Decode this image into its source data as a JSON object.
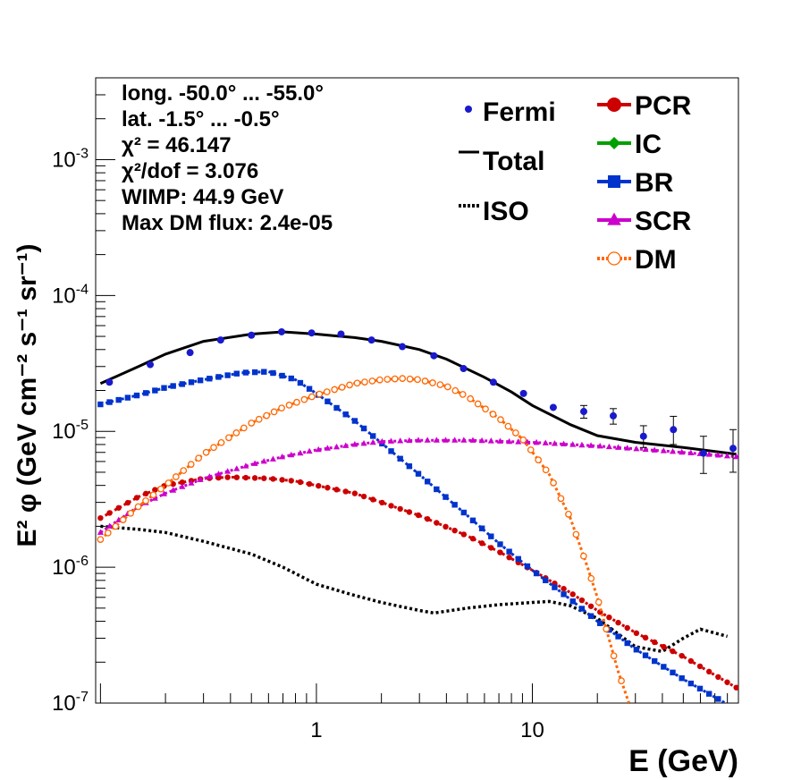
{
  "chart_data": {
    "type": "scatter",
    "xlabel": "E (GeV)",
    "ylabel": "E² φ (GeV cm⁻² s⁻¹ sr⁻¹)",
    "xscale": "log",
    "yscale": "log",
    "xlim": [
      0.095,
      90
    ],
    "ylim": [
      1e-07,
      0.004
    ],
    "x_ticks": [
      "1",
      "10"
    ],
    "y_ticks": [
      {
        "base": "10",
        "exp": "-7"
      },
      {
        "base": "10",
        "exp": "-6"
      },
      {
        "base": "10",
        "exp": "-5"
      },
      {
        "base": "10",
        "exp": "-4"
      },
      {
        "base": "10",
        "exp": "-3"
      }
    ],
    "grid": false,
    "info": {
      "lines": [
        "long. -50.0° ... -55.0°",
        "lat. -1.5° ... -0.5°",
        "χ² = 46.147",
        "χ²/dof = 3.076",
        "WIMP: 44.9 GeV",
        "Max DM flux: 2.4e-05"
      ]
    },
    "legend_left": [
      {
        "label": "Fermi",
        "color": "#1a1acc",
        "style": "point"
      },
      {
        "label": "Total",
        "color": "#000000",
        "style": "line"
      },
      {
        "label": "ISO",
        "color": "#000000",
        "style": "dotted"
      }
    ],
    "legend_right": [
      {
        "label": "PCR",
        "color": "#cc0000",
        "marker": "circle"
      },
      {
        "label": "IC",
        "color": "#00a000",
        "marker": "diamond"
      },
      {
        "label": "BR",
        "color": "#0033cc",
        "marker": "square"
      },
      {
        "label": "SCR",
        "color": "#cc00cc",
        "marker": "triangle"
      },
      {
        "label": "DM",
        "color": "#ff6600",
        "marker": "open-circle"
      }
    ],
    "fermi": {
      "x": [
        0.11,
        0.17,
        0.26,
        0.36,
        0.5,
        0.69,
        0.95,
        1.3,
        1.8,
        2.5,
        3.5,
        4.8,
        6.6,
        9.1,
        12.5,
        17.3,
        23.7,
        32.7,
        45,
        62,
        85
      ],
      "y": [
        2.3e-05,
        3.1e-05,
        3.8e-05,
        4.7e-05,
        5.1e-05,
        5.4e-05,
        5.3e-05,
        5.2e-05,
        4.7e-05,
        4.2e-05,
        3.6e-05,
        2.9e-05,
        2.3e-05,
        1.9e-05,
        1.5e-05,
        1.4e-05,
        1.3e-05,
        9.2e-06,
        1.03e-05,
        6.9e-06,
        7.5e-06
      ],
      "err_low": [
        0,
        0,
        0,
        0,
        0,
        0,
        0,
        0,
        0,
        0,
        0,
        0,
        0,
        0,
        0,
        1.5e-06,
        1.7e-06,
        1.6e-06,
        2.3e-06,
        2e-06,
        2.5e-06
      ],
      "err_high": [
        0,
        0,
        0,
        0,
        0,
        0,
        0,
        0,
        0,
        0,
        0,
        0,
        0,
        0,
        0,
        1.5e-06,
        1.7e-06,
        1.8e-06,
        2.6e-06,
        2.3e-06,
        2.8e-06
      ]
    },
    "series": [
      {
        "name": "Total",
        "style": "line",
        "color": "#000000",
        "x": [
          0.1,
          0.15,
          0.2,
          0.3,
          0.5,
          0.7,
          1.0,
          1.5,
          2.0,
          3.0,
          4.0,
          6.0,
          8.0,
          10,
          15,
          20,
          30,
          50,
          88
        ],
        "y": [
          2.25e-05,
          3e-05,
          3.7e-05,
          4.6e-05,
          5.2e-05,
          5.4e-05,
          5.2e-05,
          4.9e-05,
          4.6e-05,
          4e-05,
          3.4e-05,
          2.5e-05,
          1.95e-05,
          1.55e-05,
          1.12e-05,
          9.3e-06,
          8.3e-06,
          7.6e-06,
          6.8e-06
        ]
      },
      {
        "name": "ISO",
        "style": "dotted",
        "color": "#000000",
        "x": [
          0.1,
          0.15,
          0.2,
          0.3,
          0.5,
          0.7,
          1.0,
          1.5,
          2.0,
          3.0,
          3.5,
          5.0,
          7.0,
          10,
          12,
          15,
          20,
          30,
          40,
          50,
          60,
          80
        ],
        "y": [
          2e-06,
          1.9e-06,
          1.8e-06,
          1.55e-06,
          1.25e-06,
          1e-06,
          7.5e-07,
          6.2e-07,
          5.5e-07,
          4.8e-07,
          4.6e-07,
          5e-07,
          5.3e-07,
          5.5e-07,
          5.6e-07,
          5.2e-07,
          4.2e-07,
          2.6e-07,
          2.4e-07,
          3e-07,
          3.5e-07,
          3.1e-07
        ]
      },
      {
        "name": "PCR",
        "style": "markers",
        "marker": "circle",
        "color": "#cc0000",
        "x": [
          0.1,
          0.15,
          0.2,
          0.3,
          0.4,
          0.6,
          0.8,
          1.0,
          1.5,
          2.0,
          3.0,
          5.0,
          7.0,
          10,
          15,
          20,
          30,
          50,
          88
        ],
        "y": [
          2.3e-06,
          3.3e-06,
          4e-06,
          4.5e-06,
          4.6e-06,
          4.5e-06,
          4.3e-06,
          4e-06,
          3.5e-06,
          3e-06,
          2.4e-06,
          1.7e-06,
          1.3e-06,
          9.5e-07,
          6.5e-07,
          4.8e-07,
          3.3e-07,
          2.2e-07,
          1.3e-07
        ]
      },
      {
        "name": "BR",
        "style": "markers",
        "marker": "square",
        "color": "#0033cc",
        "x": [
          0.1,
          0.15,
          0.2,
          0.3,
          0.45,
          0.6,
          0.8,
          1.0,
          1.5,
          2.0,
          3.0,
          5.0,
          7.0,
          10,
          15,
          20,
          30,
          50,
          88
        ],
        "y": [
          1.58e-05,
          1.85e-05,
          2.1e-05,
          2.4e-05,
          2.7e-05,
          2.75e-05,
          2.4e-05,
          1.9e-05,
          1.2e-05,
          8.2e-06,
          4.8e-06,
          2.4e-06,
          1.5e-06,
          9.5e-07,
          5.8e-07,
          4e-07,
          2.5e-07,
          1.5e-07,
          9e-08
        ]
      },
      {
        "name": "SCR",
        "style": "markers",
        "marker": "triangle",
        "color": "#cc00cc",
        "x": [
          0.1,
          0.15,
          0.2,
          0.3,
          0.5,
          0.7,
          1.0,
          1.5,
          2.0,
          3.0,
          5.0,
          10,
          20,
          50,
          88
        ],
        "y": [
          1.8e-06,
          2.8e-06,
          3.5e-06,
          4.5e-06,
          5.7e-06,
          6.5e-06,
          7.3e-06,
          8e-06,
          8.4e-06,
          8.6e-06,
          8.6e-06,
          8.3e-06,
          7.8e-06,
          7e-06,
          6.5e-06
        ]
      },
      {
        "name": "DM",
        "style": "markers",
        "marker": "open-circle",
        "color": "#ff6600",
        "x": [
          0.1,
          0.15,
          0.2,
          0.3,
          0.5,
          0.7,
          1.0,
          1.5,
          2.0,
          2.5,
          3.0,
          4.0,
          5.0,
          7.0,
          9.0,
          12,
          15,
          18,
          20,
          22,
          25,
          28
        ],
        "y": [
          1.6e-06,
          2.8e-06,
          4e-06,
          6.8e-06,
          1.15e-05,
          1.5e-05,
          1.85e-05,
          2.25e-05,
          2.4e-05,
          2.45e-05,
          2.4e-05,
          2.15e-05,
          1.8e-05,
          1.25e-05,
          8.8e-06,
          4.8e-06,
          2.3e-06,
          1e-06,
          6e-07,
          3.5e-07,
          1.7e-07,
          1e-07
        ]
      }
    ]
  }
}
